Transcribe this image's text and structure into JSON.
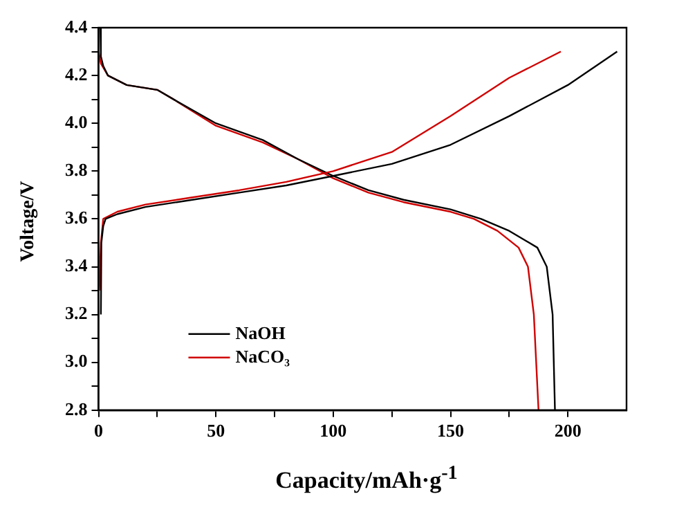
{
  "chart_data": {
    "type": "line",
    "xlabel": "Capacity/mAh·g$^{-1}$",
    "ylabel": "Voltage/V",
    "xlim": [
      0,
      225
    ],
    "ylim": [
      2.8,
      4.4
    ],
    "xticks": [
      0,
      {
        "value": 25,
        "label": null
      },
      50,
      {
        "value": 75,
        "label": null
      },
      100,
      {
        "value": 125,
        "label": null
      },
      150,
      {
        "value": 175,
        "label": null
      },
      200
    ],
    "yticks": [
      2.8,
      {
        "value": 2.9,
        "label": null
      },
      {
        "value": 3,
        "label": "3.0"
      },
      {
        "value": 3.1,
        "label": null
      },
      3.2,
      {
        "value": 3.3,
        "label": null
      },
      3.4,
      {
        "value": 3.5,
        "label": null
      },
      3.6,
      {
        "value": 3.7,
        "label": null
      },
      3.8,
      {
        "value": 3.9,
        "label": null
      },
      {
        "value": 4,
        "label": "4.0"
      },
      {
        "value": 4.1,
        "label": null
      },
      4.2,
      {
        "value": 4.3,
        "label": null
      },
      4.4
    ],
    "grid": false,
    "legend": "bottom left",
    "marker": "none",
    "line_style": "solid",
    "series": [
      {
        "name": "NaOH",
        "color": "#000000",
        "x": [
          1,
          1.2,
          2,
          3,
          8,
          20,
          40,
          60,
          80,
          100,
          125,
          150,
          175,
          200,
          221
        ],
        "values": [
          3.2,
          3.5,
          3.57,
          3.6,
          3.62,
          3.65,
          3.68,
          3.71,
          3.74,
          3.78,
          3.83,
          3.91,
          4.03,
          4.16,
          4.3
        ]
      },
      {
        "name": "NaCO₃",
        "color": "#d00000",
        "x": [
          0.3,
          1,
          2,
          8,
          20,
          40,
          60,
          80,
          100,
          125,
          150,
          175,
          197
        ],
        "values": [
          3.3,
          3.5,
          3.6,
          3.63,
          3.66,
          3.69,
          3.72,
          3.755,
          3.8,
          3.88,
          4.03,
          4.19,
          4.3
        ]
      },
      {
        "color": "#000000",
        "x": [
          0.8,
          1,
          2,
          4,
          12,
          25,
          32,
          50,
          70,
          85,
          100,
          115,
          130,
          150,
          163,
          175,
          187,
          191,
          193.5,
          194.5
        ],
        "values": [
          4.4,
          4.28,
          4.24,
          4.2,
          4.16,
          4.14,
          4.1,
          4.0,
          3.93,
          3.85,
          3.78,
          3.72,
          3.68,
          3.64,
          3.6,
          3.55,
          3.48,
          3.4,
          3.2,
          2.8
        ]
      },
      {
        "color": "#d00000",
        "x": [
          0,
          1,
          4,
          12,
          25,
          32,
          50,
          70,
          85,
          100,
          115,
          130,
          150,
          160,
          170,
          179,
          183,
          185.5,
          187.5
        ],
        "values": [
          4.3,
          4.25,
          4.2,
          4.16,
          4.14,
          4.1,
          3.99,
          3.92,
          3.85,
          3.77,
          3.71,
          3.67,
          3.63,
          3.6,
          3.55,
          3.48,
          3.4,
          3.2,
          2.8
        ]
      }
    ]
  }
}
